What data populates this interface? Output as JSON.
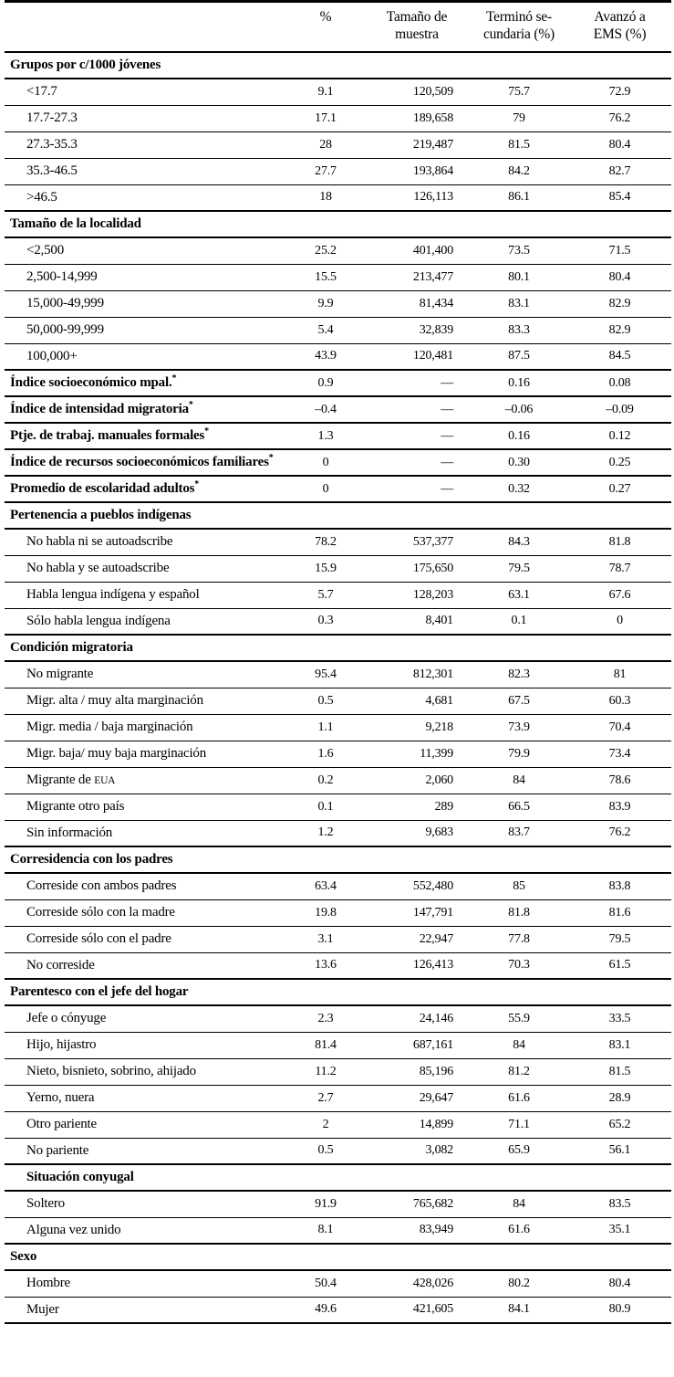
{
  "page": {
    "background": "#ffffff",
    "text_color": "#000000",
    "rule_color": "#000000"
  },
  "table": {
    "header": {
      "pct": {
        "line1": "%",
        "line2": ""
      },
      "sample": {
        "line1": "Tamaño de",
        "line2": "muestra"
      },
      "secondary": {
        "line1": "Terminó se-",
        "line2": "cundaria (%)"
      },
      "ems": {
        "line1": "Avanzó a",
        "line2": "EMS (%)"
      }
    },
    "rows": [
      {
        "type": "section",
        "label": "Grupos por c/1000 jóvenes"
      },
      {
        "type": "data",
        "label": "<17.7",
        "pct": "9.1",
        "n": "120,509",
        "sec": "75.7",
        "ems": "72.9"
      },
      {
        "type": "data",
        "label": "17.7-27.3",
        "pct": "17.1",
        "n": "189,658",
        "sec": "79",
        "ems": "76.2"
      },
      {
        "type": "data",
        "label": "27.3-35.3",
        "pct": "28",
        "n": "219,487",
        "sec": "81.5",
        "ems": "80.4"
      },
      {
        "type": "data",
        "label": "35.3-46.5",
        "pct": "27.7",
        "n": "193,864",
        "sec": "84.2",
        "ems": "82.7"
      },
      {
        "type": "data",
        "label": ">46.5",
        "pct": "18",
        "n": "126,113",
        "sec": "86.1",
        "ems": "85.4"
      },
      {
        "type": "section",
        "label": "Tamaño de la localidad"
      },
      {
        "type": "data",
        "label": "<2,500",
        "pct": "25.2",
        "n": "401,400",
        "sec": "73.5",
        "ems": "71.5"
      },
      {
        "type": "data",
        "label": "2,500-14,999",
        "pct": "15.5",
        "n": "213,477",
        "sec": "80.1",
        "ems": "80.4"
      },
      {
        "type": "data",
        "label": "15,000-49,999",
        "pct": "9.9",
        "n": "81,434",
        "sec": "83.1",
        "ems": "82.9"
      },
      {
        "type": "data",
        "label": "50,000-99,999",
        "pct": "5.4",
        "n": "32,839",
        "sec": "83.3",
        "ems": "82.9"
      },
      {
        "type": "data",
        "label": "100,000+",
        "pct": "43.9",
        "n": "120,481",
        "sec": "87.5",
        "ems": "84.5"
      },
      {
        "type": "measure",
        "label": "Índice socioeconómico mpal.",
        "sup": "*",
        "pct": "0.9",
        "n": "—",
        "sec": "0.16",
        "ems": "0.08"
      },
      {
        "type": "measure",
        "label": "Índice de intensidad migratoria",
        "sup": "*",
        "pct": "–0.4",
        "n": "—",
        "sec": "–0.06",
        "ems": "–0.09"
      },
      {
        "type": "measure",
        "label": "Ptje. de trabaj. manuales formales",
        "sup": "*",
        "pct": "1.3",
        "n": "—",
        "sec": "0.16",
        "ems": "0.12"
      },
      {
        "type": "measure",
        "label": "Índice de recursos socioeconómicos familiares",
        "sup": "*",
        "pct": "0",
        "n": "—",
        "sec": "0.30",
        "ems": "0.25"
      },
      {
        "type": "measure",
        "label": "Promedio de escolaridad adultos",
        "sup": "*",
        "pct": "0",
        "n": "—",
        "sec": "0.32",
        "ems": "0.27"
      },
      {
        "type": "section",
        "label": "Pertenencia a pueblos indígenas"
      },
      {
        "type": "data",
        "label": "No habla ni se autoadscribe",
        "pct": "78.2",
        "n": "537,377",
        "sec": "84.3",
        "ems": "81.8"
      },
      {
        "type": "data",
        "label": "No habla y se autoadscribe",
        "pct": "15.9",
        "n": "175,650",
        "sec": "79.5",
        "ems": "78.7"
      },
      {
        "type": "data",
        "label": "Habla lengua indígena y español",
        "pct": "5.7",
        "n": "128,203",
        "sec": "63.1",
        "ems": "67.6"
      },
      {
        "type": "data",
        "label": "Sólo habla lengua indígena",
        "pct": "0.3",
        "n": "8,401",
        "sec": "0.1",
        "ems": "0"
      },
      {
        "type": "section",
        "label": "Condición migratoria"
      },
      {
        "type": "data",
        "label": "No migrante",
        "pct": "95.4",
        "n": "812,301",
        "sec": "82.3",
        "ems": "81"
      },
      {
        "type": "data",
        "label": "Migr. alta / muy alta marginación",
        "pct": "0.5",
        "n": "4,681",
        "sec": "67.5",
        "ems": "60.3"
      },
      {
        "type": "data",
        "label": "Migr. media / baja marginación",
        "pct": "1.1",
        "n": "9,218",
        "sec": "73.9",
        "ems": "70.4"
      },
      {
        "type": "data",
        "label": "Migr. baja/ muy baja marginación",
        "pct": "1.6",
        "n": "11,399",
        "sec": "79.9",
        "ems": "73.4"
      },
      {
        "type": "data",
        "label": "Migrante de ",
        "label_sc": "EUA",
        "pct": "0.2",
        "n": "2,060",
        "sec": "84",
        "ems": "78.6"
      },
      {
        "type": "data",
        "label": "Migrante otro país",
        "pct": "0.1",
        "n": "289",
        "sec": "66.5",
        "ems": "83.9"
      },
      {
        "type": "data",
        "label": "Sin información",
        "pct": "1.2",
        "n": "9,683",
        "sec": "83.7",
        "ems": "76.2"
      },
      {
        "type": "section",
        "label": "Corresidencia con los padres"
      },
      {
        "type": "data",
        "label": "Correside con ambos padres",
        "pct": "63.4",
        "n": "552,480",
        "sec": "85",
        "ems": "83.8"
      },
      {
        "type": "data",
        "label": "Correside sólo con la madre",
        "pct": "19.8",
        "n": "147,791",
        "sec": "81.8",
        "ems": "81.6"
      },
      {
        "type": "data",
        "label": "Correside sólo con el padre",
        "pct": "3.1",
        "n": "22,947",
        "sec": "77.8",
        "ems": "79.5"
      },
      {
        "type": "data",
        "label": "No correside",
        "pct": "13.6",
        "n": "126,413",
        "sec": "70.3",
        "ems": "61.5"
      },
      {
        "type": "section",
        "label": "Parentesco con el jefe del hogar"
      },
      {
        "type": "data",
        "label": "Jefe o cónyuge",
        "pct": "2.3",
        "n": "24,146",
        "sec": "55.9",
        "ems": "33.5"
      },
      {
        "type": "data",
        "label": "Hijo, hijastro",
        "pct": "81.4",
        "n": "687,161",
        "sec": "84",
        "ems": "83.1"
      },
      {
        "type": "data",
        "label": "Nieto, bisnieto, sobrino, ahijado",
        "pct": "11.2",
        "n": "85,196",
        "sec": "81.2",
        "ems": "81.5"
      },
      {
        "type": "data",
        "label": "Yerno, nuera",
        "pct": "2.7",
        "n": "29,647",
        "sec": "61.6",
        "ems": "28.9"
      },
      {
        "type": "data",
        "label": "Otro pariente",
        "pct": "2",
        "n": "14,899",
        "sec": "71.1",
        "ems": "65.2"
      },
      {
        "type": "data",
        "label": "No pariente",
        "pct": "0.5",
        "n": "3,082",
        "sec": "65.9",
        "ems": "56.1"
      },
      {
        "type": "section_indent",
        "label": "Situación conyugal"
      },
      {
        "type": "data",
        "label": "Soltero",
        "pct": "91.9",
        "n": "765,682",
        "sec": "84",
        "ems": "83.5"
      },
      {
        "type": "data",
        "label": "Alguna vez unido",
        "pct": "8.1",
        "n": "83,949",
        "sec": "61.6",
        "ems": "35.1"
      },
      {
        "type": "section",
        "label": "Sexo"
      },
      {
        "type": "data",
        "label": "Hombre",
        "pct": "50.4",
        "n": "428,026",
        "sec": "80.2",
        "ems": "80.4"
      },
      {
        "type": "data",
        "label": "Mujer",
        "pct": "49.6",
        "n": "421,605",
        "sec": "84.1",
        "ems": "80.9"
      }
    ]
  }
}
